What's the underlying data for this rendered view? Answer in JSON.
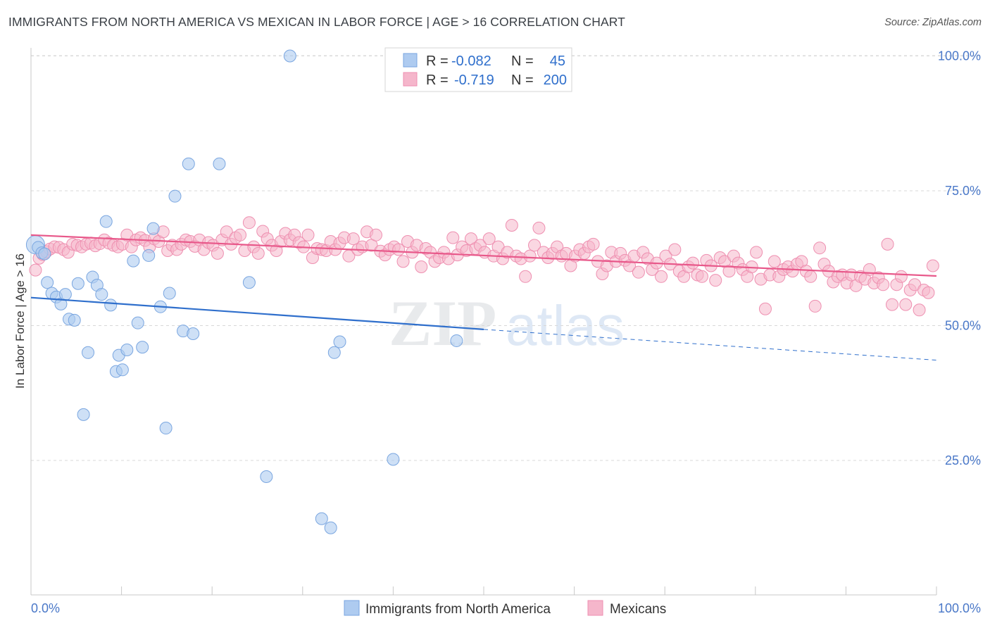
{
  "title": "IMMIGRANTS FROM NORTH AMERICA VS MEXICAN IN LABOR FORCE | AGE > 16 CORRELATION CHART",
  "source": "Source: ZipAtlas.com",
  "watermark": "ZIPatlas",
  "colors": {
    "blue_fill": "#aecbf0",
    "blue_stroke": "#7aa6e0",
    "blue_line": "#2f6fcc",
    "pink_fill": "#f5b6cb",
    "pink_stroke": "#ee8fb0",
    "pink_line": "#e8588a",
    "tick_label": "#4a78c8",
    "grid": "#d8d8d8"
  },
  "legend_box": {
    "rows": [
      {
        "r_label": "R =",
        "r_value": "-0.082",
        "n_label": "N =",
        "n_value": "45",
        "series": "blue"
      },
      {
        "r_label": "R =",
        "r_value": "-0.719",
        "n_label": "N =",
        "n_value": "200",
        "series": "pink"
      }
    ]
  },
  "bottom_legend": [
    {
      "label": "Immigrants from North America",
      "series": "blue"
    },
    {
      "label": "Mexicans",
      "series": "pink"
    }
  ],
  "chart_data": {
    "type": "scatter",
    "title": "IMMIGRANTS FROM NORTH AMERICA VS MEXICAN IN LABOR FORCE | AGE > 16 CORRELATION CHART",
    "xlabel": "",
    "ylabel": "In Labor Force | Age > 16",
    "xlim": [
      0,
      100
    ],
    "ylim": [
      0,
      102
    ],
    "x_tick_labels": [
      "0.0%",
      "100.0%"
    ],
    "y_ticks": [
      25,
      50,
      75,
      100
    ],
    "y_tick_labels": [
      "25.0%",
      "50.0%",
      "75.0%",
      "100.0%"
    ],
    "grid": "horizontal dashed",
    "series": [
      {
        "name": "Immigrants from North America",
        "color": "#aecbf0",
        "r": -0.082,
        "n": 45,
        "trend": {
          "x0": 0,
          "y0": 55.2,
          "x1": 50,
          "y1": 49.3,
          "dashed_to_x": 100,
          "dashed_to_y": 43.6
        },
        "points": [
          [
            0.5,
            65
          ],
          [
            0.8,
            64.5
          ],
          [
            1.2,
            63.5
          ],
          [
            1.8,
            58
          ],
          [
            2.3,
            56
          ],
          [
            2.8,
            55.3
          ],
          [
            3.3,
            54
          ],
          [
            3.8,
            55.8
          ],
          [
            4.2,
            51.2
          ],
          [
            4.8,
            51
          ],
          [
            5.2,
            57.8
          ],
          [
            6.3,
            45
          ],
          [
            5.8,
            33.5
          ],
          [
            6.8,
            59
          ],
          [
            7.3,
            57.5
          ],
          [
            7.8,
            55.8
          ],
          [
            8.3,
            69.3
          ],
          [
            8.8,
            53.8
          ],
          [
            9.4,
            41.5
          ],
          [
            9.7,
            44.5
          ],
          [
            10.1,
            41.8
          ],
          [
            10.6,
            45.5
          ],
          [
            11.3,
            62
          ],
          [
            11.8,
            50.5
          ],
          [
            12.3,
            46
          ],
          [
            13,
            63
          ],
          [
            13.5,
            68
          ],
          [
            14.3,
            53.5
          ],
          [
            14.9,
            31
          ],
          [
            15.3,
            56
          ],
          [
            15.9,
            74
          ],
          [
            16.8,
            49
          ],
          [
            17.4,
            80
          ],
          [
            17.9,
            48.5
          ],
          [
            20.8,
            80
          ],
          [
            24.1,
            58
          ],
          [
            26,
            22
          ],
          [
            28.6,
            100
          ],
          [
            32.1,
            14.2
          ],
          [
            33.1,
            12.5
          ],
          [
            33.5,
            45
          ],
          [
            34.1,
            47
          ],
          [
            40,
            25.2
          ],
          [
            47,
            47.2
          ],
          [
            1.5,
            63.3
          ]
        ]
      },
      {
        "name": "Mexicans",
        "color": "#f5b6cb",
        "r": -0.719,
        "n": 200,
        "trend": {
          "x0": 0,
          "y0": 66.8,
          "x1": 100,
          "y1": 59.2
        },
        "points": [
          [
            0.5,
            60.3
          ],
          [
            0.9,
            62.5
          ],
          [
            1.3,
            63.2
          ],
          [
            1.7,
            63.7
          ],
          [
            2.1,
            64.2
          ],
          [
            2.6,
            64.6
          ],
          [
            3.1,
            64.5
          ],
          [
            3.6,
            64.1
          ],
          [
            4.1,
            63.6
          ],
          [
            4.6,
            65.1
          ],
          [
            5.1,
            64.9
          ],
          [
            5.6,
            64.6
          ],
          [
            6.1,
            65.1
          ],
          [
            6.6,
            65.3
          ],
          [
            7.1,
            64.8
          ],
          [
            7.6,
            65.2
          ],
          [
            8.1,
            65.9
          ],
          [
            8.6,
            65.3
          ],
          [
            9.1,
            64.9
          ],
          [
            9.6,
            64.6
          ],
          [
            10.1,
            65.1
          ],
          [
            10.6,
            66.8
          ],
          [
            11.1,
            64.6
          ],
          [
            11.6,
            65.9
          ],
          [
            12.1,
            66.3
          ],
          [
            12.6,
            65.8
          ],
          [
            13.1,
            64.6
          ],
          [
            13.6,
            66.1
          ],
          [
            14.1,
            65.6
          ],
          [
            14.6,
            67.4
          ],
          [
            15.1,
            63.9
          ],
          [
            15.6,
            64.9
          ],
          [
            16.1,
            64.1
          ],
          [
            16.6,
            65.1
          ],
          [
            17.1,
            65.9
          ],
          [
            17.6,
            65.6
          ],
          [
            18.1,
            64.7
          ],
          [
            18.6,
            65.9
          ],
          [
            19.1,
            64.1
          ],
          [
            19.6,
            65.4
          ],
          [
            20.1,
            64.9
          ],
          [
            20.6,
            63.4
          ],
          [
            21.1,
            65.9
          ],
          [
            21.6,
            67.4
          ],
          [
            22.1,
            65.1
          ],
          [
            22.6,
            66.3
          ],
          [
            23.1,
            66.8
          ],
          [
            23.6,
            63.9
          ],
          [
            24.1,
            69.1
          ],
          [
            24.6,
            64.6
          ],
          [
            25.1,
            63.4
          ],
          [
            25.6,
            67.5
          ],
          [
            26.1,
            66.1
          ],
          [
            26.6,
            64.9
          ],
          [
            27.1,
            63.9
          ],
          [
            27.6,
            65.6
          ],
          [
            28.1,
            67.1
          ],
          [
            28.6,
            65.9
          ],
          [
            29.1,
            66.8
          ],
          [
            29.6,
            65.4
          ],
          [
            30.1,
            64.6
          ],
          [
            30.6,
            66.8
          ],
          [
            31.1,
            62.6
          ],
          [
            31.6,
            64.3
          ],
          [
            32.1,
            64.1
          ],
          [
            32.6,
            63.9
          ],
          [
            33.1,
            65.6
          ],
          [
            33.6,
            64.1
          ],
          [
            34.1,
            65.3
          ],
          [
            34.6,
            66.3
          ],
          [
            35.1,
            62.9
          ],
          [
            35.6,
            66.1
          ],
          [
            36.1,
            64.1
          ],
          [
            36.6,
            64.6
          ],
          [
            37.1,
            67.4
          ],
          [
            37.6,
            64.9
          ],
          [
            38.1,
            66.8
          ],
          [
            38.6,
            63.8
          ],
          [
            39.1,
            63.1
          ],
          [
            39.6,
            64.1
          ],
          [
            40.1,
            64.6
          ],
          [
            40.6,
            64.1
          ],
          [
            41.1,
            61.9
          ],
          [
            41.6,
            65.6
          ],
          [
            42.1,
            63.6
          ],
          [
            42.6,
            64.9
          ],
          [
            43.1,
            60.9
          ],
          [
            43.6,
            64.3
          ],
          [
            44.1,
            63.6
          ],
          [
            44.6,
            61.9
          ],
          [
            45.1,
            62.6
          ],
          [
            45.6,
            63.6
          ],
          [
            46.1,
            62.4
          ],
          [
            46.6,
            66.3
          ],
          [
            47.1,
            63.1
          ],
          [
            47.6,
            64.6
          ],
          [
            48.1,
            63.9
          ],
          [
            48.6,
            66.1
          ],
          [
            49.1,
            64.3
          ],
          [
            49.6,
            64.9
          ],
          [
            50.1,
            63.6
          ],
          [
            50.6,
            66.1
          ],
          [
            51.1,
            62.9
          ],
          [
            51.6,
            64.6
          ],
          [
            52.1,
            62.4
          ],
          [
            52.6,
            63.6
          ],
          [
            53.1,
            68.6
          ],
          [
            53.6,
            62.9
          ],
          [
            54.1,
            62.4
          ],
          [
            54.6,
            59.1
          ],
          [
            55.1,
            62.9
          ],
          [
            55.6,
            64.9
          ],
          [
            56.1,
            68.1
          ],
          [
            56.6,
            63.6
          ],
          [
            57.1,
            62.6
          ],
          [
            57.6,
            63.4
          ],
          [
            58.1,
            64.6
          ],
          [
            58.6,
            62.9
          ],
          [
            59.1,
            63.4
          ],
          [
            59.6,
            61.1
          ],
          [
            60.1,
            62.9
          ],
          [
            60.6,
            64.1
          ],
          [
            61.1,
            63.4
          ],
          [
            61.6,
            64.6
          ],
          [
            62.1,
            65.1
          ],
          [
            62.6,
            61.9
          ],
          [
            63.1,
            59.6
          ],
          [
            63.6,
            61.1
          ],
          [
            64.1,
            63.6
          ],
          [
            64.6,
            61.9
          ],
          [
            65.1,
            63.4
          ],
          [
            65.6,
            62.1
          ],
          [
            66.1,
            61.1
          ],
          [
            66.6,
            62.9
          ],
          [
            67.1,
            59.9
          ],
          [
            67.6,
            63.6
          ],
          [
            68.1,
            62.4
          ],
          [
            68.6,
            60.4
          ],
          [
            69.1,
            61.6
          ],
          [
            69.6,
            59.1
          ],
          [
            70.1,
            62.9
          ],
          [
            70.6,
            61.4
          ],
          [
            71.1,
            64.1
          ],
          [
            71.6,
            60.1
          ],
          [
            72.1,
            59.1
          ],
          [
            72.6,
            60.9
          ],
          [
            73.1,
            61.6
          ],
          [
            73.6,
            59.4
          ],
          [
            74.1,
            59.1
          ],
          [
            74.6,
            62.1
          ],
          [
            75.1,
            61.1
          ],
          [
            75.6,
            58.4
          ],
          [
            76.1,
            62.6
          ],
          [
            76.6,
            61.9
          ],
          [
            77.1,
            60.1
          ],
          [
            77.6,
            62.9
          ],
          [
            78.1,
            61.6
          ],
          [
            78.6,
            60.4
          ],
          [
            79.1,
            59.1
          ],
          [
            79.6,
            60.9
          ],
          [
            80.1,
            63.6
          ],
          [
            80.6,
            58.6
          ],
          [
            81.1,
            53.1
          ],
          [
            81.6,
            59.4
          ],
          [
            82.1,
            61.9
          ],
          [
            82.6,
            59.1
          ],
          [
            83.1,
            60.4
          ],
          [
            83.6,
            60.9
          ],
          [
            84.1,
            60.1
          ],
          [
            84.6,
            61.4
          ],
          [
            85.1,
            61.9
          ],
          [
            85.6,
            60.1
          ],
          [
            86.1,
            59.1
          ],
          [
            86.6,
            53.6
          ],
          [
            87.1,
            64.4
          ],
          [
            87.6,
            61.4
          ],
          [
            88.1,
            60.1
          ],
          [
            88.6,
            58.1
          ],
          [
            89.1,
            59.1
          ],
          [
            89.6,
            59.4
          ],
          [
            90.1,
            57.9
          ],
          [
            90.6,
            59.4
          ],
          [
            91.1,
            57.4
          ],
          [
            91.6,
            59.1
          ],
          [
            92.1,
            58.6
          ],
          [
            92.6,
            60.4
          ],
          [
            93.1,
            57.9
          ],
          [
            93.6,
            58.9
          ],
          [
            94.1,
            57.6
          ],
          [
            94.6,
            65.1
          ],
          [
            95.1,
            53.9
          ],
          [
            95.6,
            57.6
          ],
          [
            96.1,
            59.1
          ],
          [
            96.6,
            53.9
          ],
          [
            97.1,
            56.6
          ],
          [
            97.6,
            57.6
          ],
          [
            98.1,
            52.9
          ],
          [
            98.6,
            56.6
          ],
          [
            99.1,
            56.1
          ],
          [
            99.6,
            61.1
          ]
        ]
      }
    ]
  }
}
